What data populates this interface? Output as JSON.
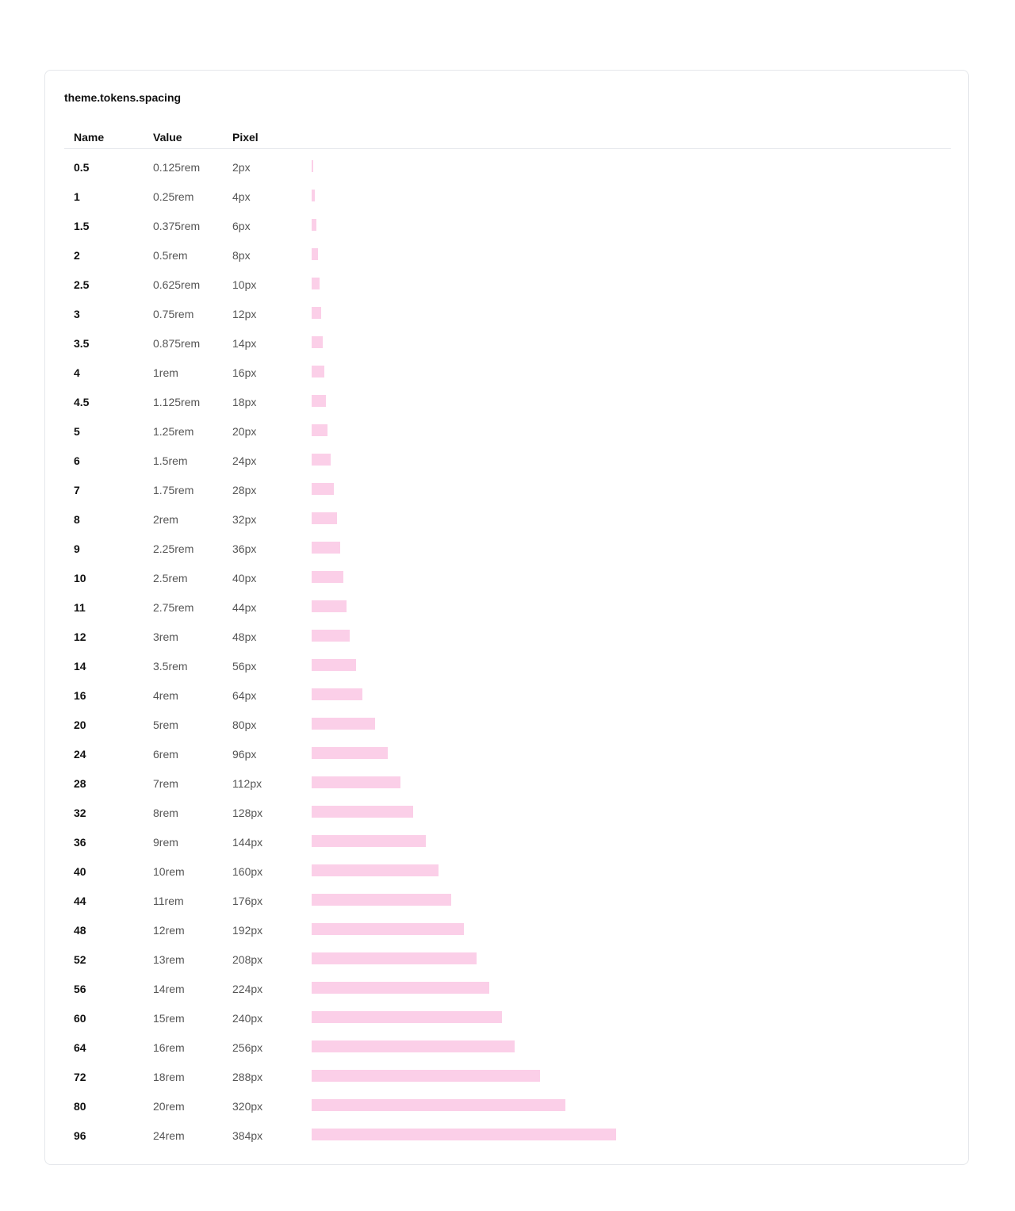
{
  "title": "theme.tokens.spacing",
  "table": {
    "headers": [
      "Name",
      "Value",
      "Pixel"
    ],
    "rows": [
      {
        "name": "0.5",
        "value": "0.125rem",
        "pixel": 2,
        "pixel_label": "2px"
      },
      {
        "name": "1",
        "value": "0.25rem",
        "pixel": 4,
        "pixel_label": "4px"
      },
      {
        "name": "1.5",
        "value": "0.375rem",
        "pixel": 6,
        "pixel_label": "6px"
      },
      {
        "name": "2",
        "value": "0.5rem",
        "pixel": 8,
        "pixel_label": "8px"
      },
      {
        "name": "2.5",
        "value": "0.625rem",
        "pixel": 10,
        "pixel_label": "10px"
      },
      {
        "name": "3",
        "value": "0.75rem",
        "pixel": 12,
        "pixel_label": "12px"
      },
      {
        "name": "3.5",
        "value": "0.875rem",
        "pixel": 14,
        "pixel_label": "14px"
      },
      {
        "name": "4",
        "value": "1rem",
        "pixel": 16,
        "pixel_label": "16px"
      },
      {
        "name": "4.5",
        "value": "1.125rem",
        "pixel": 18,
        "pixel_label": "18px"
      },
      {
        "name": "5",
        "value": "1.25rem",
        "pixel": 20,
        "pixel_label": "20px"
      },
      {
        "name": "6",
        "value": "1.5rem",
        "pixel": 24,
        "pixel_label": "24px"
      },
      {
        "name": "7",
        "value": "1.75rem",
        "pixel": 28,
        "pixel_label": "28px"
      },
      {
        "name": "8",
        "value": "2rem",
        "pixel": 32,
        "pixel_label": "32px"
      },
      {
        "name": "9",
        "value": "2.25rem",
        "pixel": 36,
        "pixel_label": "36px"
      },
      {
        "name": "10",
        "value": "2.5rem",
        "pixel": 40,
        "pixel_label": "40px"
      },
      {
        "name": "11",
        "value": "2.75rem",
        "pixel": 44,
        "pixel_label": "44px"
      },
      {
        "name": "12",
        "value": "3rem",
        "pixel": 48,
        "pixel_label": "48px"
      },
      {
        "name": "14",
        "value": "3.5rem",
        "pixel": 56,
        "pixel_label": "56px"
      },
      {
        "name": "16",
        "value": "4rem",
        "pixel": 64,
        "pixel_label": "64px"
      },
      {
        "name": "20",
        "value": "5rem",
        "pixel": 80,
        "pixel_label": "80px"
      },
      {
        "name": "24",
        "value": "6rem",
        "pixel": 96,
        "pixel_label": "96px"
      },
      {
        "name": "28",
        "value": "7rem",
        "pixel": 112,
        "pixel_label": "112px"
      },
      {
        "name": "32",
        "value": "8rem",
        "pixel": 128,
        "pixel_label": "128px"
      },
      {
        "name": "36",
        "value": "9rem",
        "pixel": 144,
        "pixel_label": "144px"
      },
      {
        "name": "40",
        "value": "10rem",
        "pixel": 160,
        "pixel_label": "160px"
      },
      {
        "name": "44",
        "value": "11rem",
        "pixel": 176,
        "pixel_label": "176px"
      },
      {
        "name": "48",
        "value": "12rem",
        "pixel": 192,
        "pixel_label": "192px"
      },
      {
        "name": "52",
        "value": "13rem",
        "pixel": 208,
        "pixel_label": "208px"
      },
      {
        "name": "56",
        "value": "14rem",
        "pixel": 224,
        "pixel_label": "224px"
      },
      {
        "name": "60",
        "value": "15rem",
        "pixel": 240,
        "pixel_label": "240px"
      },
      {
        "name": "64",
        "value": "16rem",
        "pixel": 256,
        "pixel_label": "256px"
      },
      {
        "name": "72",
        "value": "18rem",
        "pixel": 288,
        "pixel_label": "288px"
      },
      {
        "name": "80",
        "value": "20rem",
        "pixel": 320,
        "pixel_label": "320px"
      },
      {
        "name": "96",
        "value": "24rem",
        "pixel": 384,
        "pixel_label": "384px"
      }
    ]
  }
}
